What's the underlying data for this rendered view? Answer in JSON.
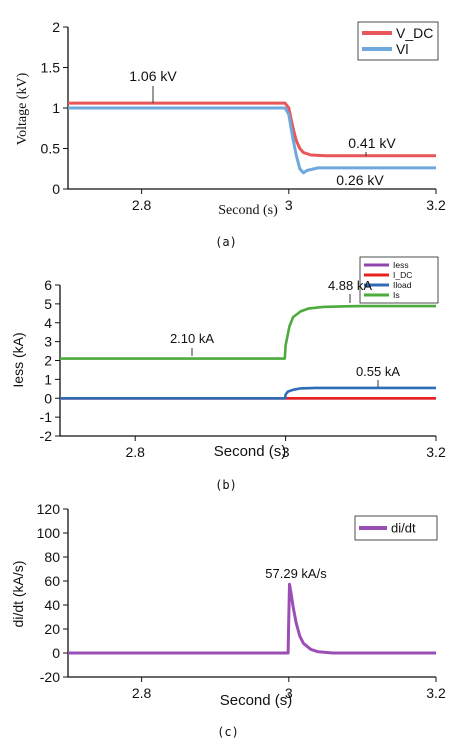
{
  "chart_data": [
    {
      "type": "line",
      "panel_label": "(a)",
      "xlabel": "Second (s)",
      "ylabel": "Voltage (kV)",
      "xlim": [
        2.7,
        3.2
      ],
      "ylim": [
        0,
        2
      ],
      "xticks": [
        2.8,
        3,
        3.2
      ],
      "yticks": [
        0,
        0.5,
        1,
        1.5,
        2
      ],
      "legend_position": "top-right",
      "series": [
        {
          "name": "V_DC",
          "color": "#e8565a",
          "x": [
            2.7,
            2.995,
            3.0,
            3.005,
            3.01,
            3.015,
            3.02,
            3.03,
            3.05,
            3.1,
            3.2
          ],
          "y": [
            1.06,
            1.06,
            1.0,
            0.78,
            0.6,
            0.5,
            0.45,
            0.42,
            0.41,
            0.41,
            0.41
          ]
        },
        {
          "name": "Vl",
          "color": "#6fa8dc",
          "x": [
            2.7,
            2.995,
            3.0,
            3.005,
            3.01,
            3.015,
            3.02,
            3.025,
            3.04,
            3.1,
            3.2
          ],
          "y": [
            1.0,
            1.0,
            0.92,
            0.65,
            0.42,
            0.25,
            0.2,
            0.23,
            0.26,
            0.26,
            0.26
          ]
        }
      ],
      "annotations": [
        "1.06 kV",
        "0.41 kV",
        "0.26 kV"
      ]
    },
    {
      "type": "line",
      "panel_label": "(b)",
      "xlabel": "Second (s)",
      "ylabel": "Iess (kA)",
      "xlim": [
        2.7,
        3.2
      ],
      "ylim": [
        -2,
        6
      ],
      "xticks": [
        2.8,
        3,
        3.2
      ],
      "yticks": [
        -2,
        -1,
        0,
        1,
        2,
        3,
        4,
        5,
        6
      ],
      "legend_position": "top-right",
      "series": [
        {
          "name": "Iess",
          "color": "#8e44ad",
          "x": [
            2.7,
            3.2
          ],
          "y": [
            0,
            0
          ]
        },
        {
          "name": "I_DC",
          "color": "#e8211e",
          "x": [
            2.7,
            3.2
          ],
          "y": [
            0,
            0
          ]
        },
        {
          "name": "Iload",
          "color": "#2e6cb5",
          "x": [
            2.7,
            2.9995,
            3.0,
            3.003,
            3.01,
            3.02,
            3.04,
            3.1,
            3.2
          ],
          "y": [
            0,
            0,
            0.2,
            0.35,
            0.45,
            0.52,
            0.55,
            0.55,
            0.55
          ]
        },
        {
          "name": "Is",
          "color": "#4daa3c",
          "x": [
            2.7,
            2.999,
            3.0,
            3.005,
            3.01,
            3.02,
            3.03,
            3.05,
            3.08,
            3.1,
            3.2
          ],
          "y": [
            2.1,
            2.1,
            2.8,
            3.8,
            4.3,
            4.6,
            4.75,
            4.84,
            4.87,
            4.88,
            4.88
          ]
        }
      ],
      "annotations": [
        "2.10 kA",
        "4.88 kA",
        "0.55 kA"
      ]
    },
    {
      "type": "line",
      "panel_label": "(c)",
      "xlabel": "Second (s)",
      "ylabel": "di/dt (kA/s)",
      "xlim": [
        2.7,
        3.2
      ],
      "ylim": [
        -20,
        120
      ],
      "xticks": [
        2.8,
        3,
        3.2
      ],
      "yticks": [
        -20,
        0,
        20,
        40,
        60,
        80,
        100,
        120
      ],
      "legend_position": "top-right",
      "series": [
        {
          "name": "di/dt",
          "color": "#9b4fb5",
          "x": [
            2.7,
            2.999,
            3.0,
            3.001,
            3.003,
            3.006,
            3.01,
            3.015,
            3.02,
            3.03,
            3.04,
            3.06,
            3.2
          ],
          "y": [
            0,
            0,
            30,
            57.29,
            50,
            38,
            25,
            14,
            8,
            3,
            1,
            0,
            0
          ]
        }
      ],
      "annotations": [
        "57.29 kA/s"
      ]
    }
  ]
}
